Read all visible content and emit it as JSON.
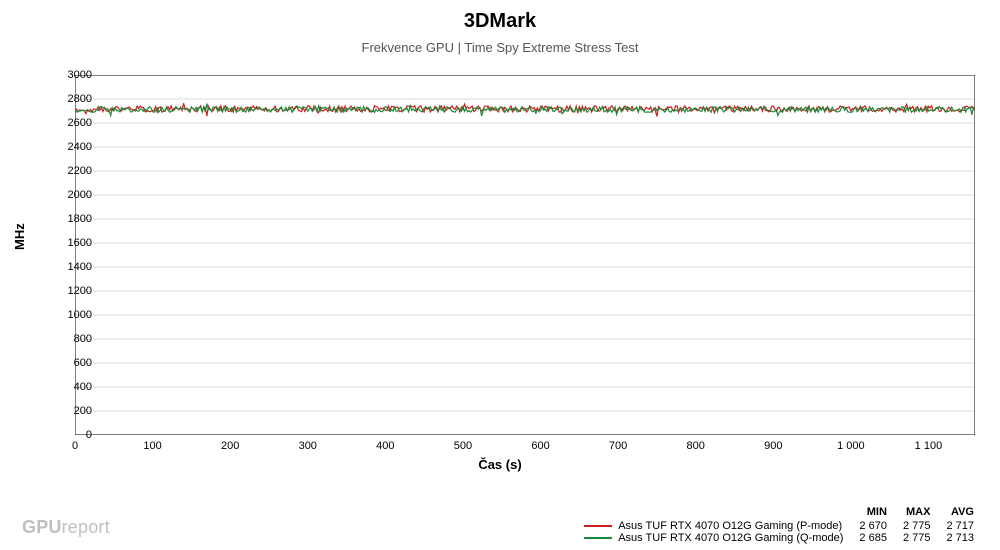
{
  "chart": {
    "type": "line",
    "title": "3DMark",
    "title_fontsize": 20,
    "subtitle": "Frekvence GPU | Time Spy Extreme Stress Test",
    "subtitle_fontsize": 13,
    "ylabel": "MHz",
    "xlabel": "Čas (s)",
    "label_fontsize": 13,
    "tick_fontsize": 11,
    "background_color": "#ffffff",
    "grid_color": "#b8b8b8",
    "axis_color": "#000000",
    "line_width": 1.2,
    "xlim": [
      0,
      1160
    ],
    "ylim": [
      0,
      3000
    ],
    "xticks": [
      0,
      100,
      200,
      300,
      400,
      500,
      600,
      700,
      800,
      900,
      1000,
      1100
    ],
    "xtick_labels": [
      "0",
      "100",
      "200",
      "300",
      "400",
      "500",
      "600",
      "700",
      "800",
      "900",
      "1 000",
      "1 100"
    ],
    "yticks": [
      0,
      200,
      400,
      600,
      800,
      1000,
      1200,
      1400,
      1600,
      1800,
      2000,
      2200,
      2400,
      2600,
      2800,
      3000
    ],
    "series": [
      {
        "name": "Asus TUF RTX 4070 O12G Gaming (P-mode)",
        "color": "#d01c1c",
        "min": "2 670",
        "max": "2 775",
        "avg": "2 717",
        "baseline": 2717,
        "jitter_amp": 45,
        "jitter_seed": 1
      },
      {
        "name": "Asus TUF RTX 4070 O12G Gaming (Q-mode)",
        "color": "#198a3a",
        "min": "2 685",
        "max": "2 775",
        "avg": "2 713",
        "baseline": 2713,
        "jitter_amp": 40,
        "jitter_seed": 2
      }
    ]
  },
  "legend_headers": {
    "min": "MIN",
    "max": "MAX",
    "avg": "AVG"
  },
  "watermark": {
    "bold": "GPU",
    "light": "report"
  }
}
